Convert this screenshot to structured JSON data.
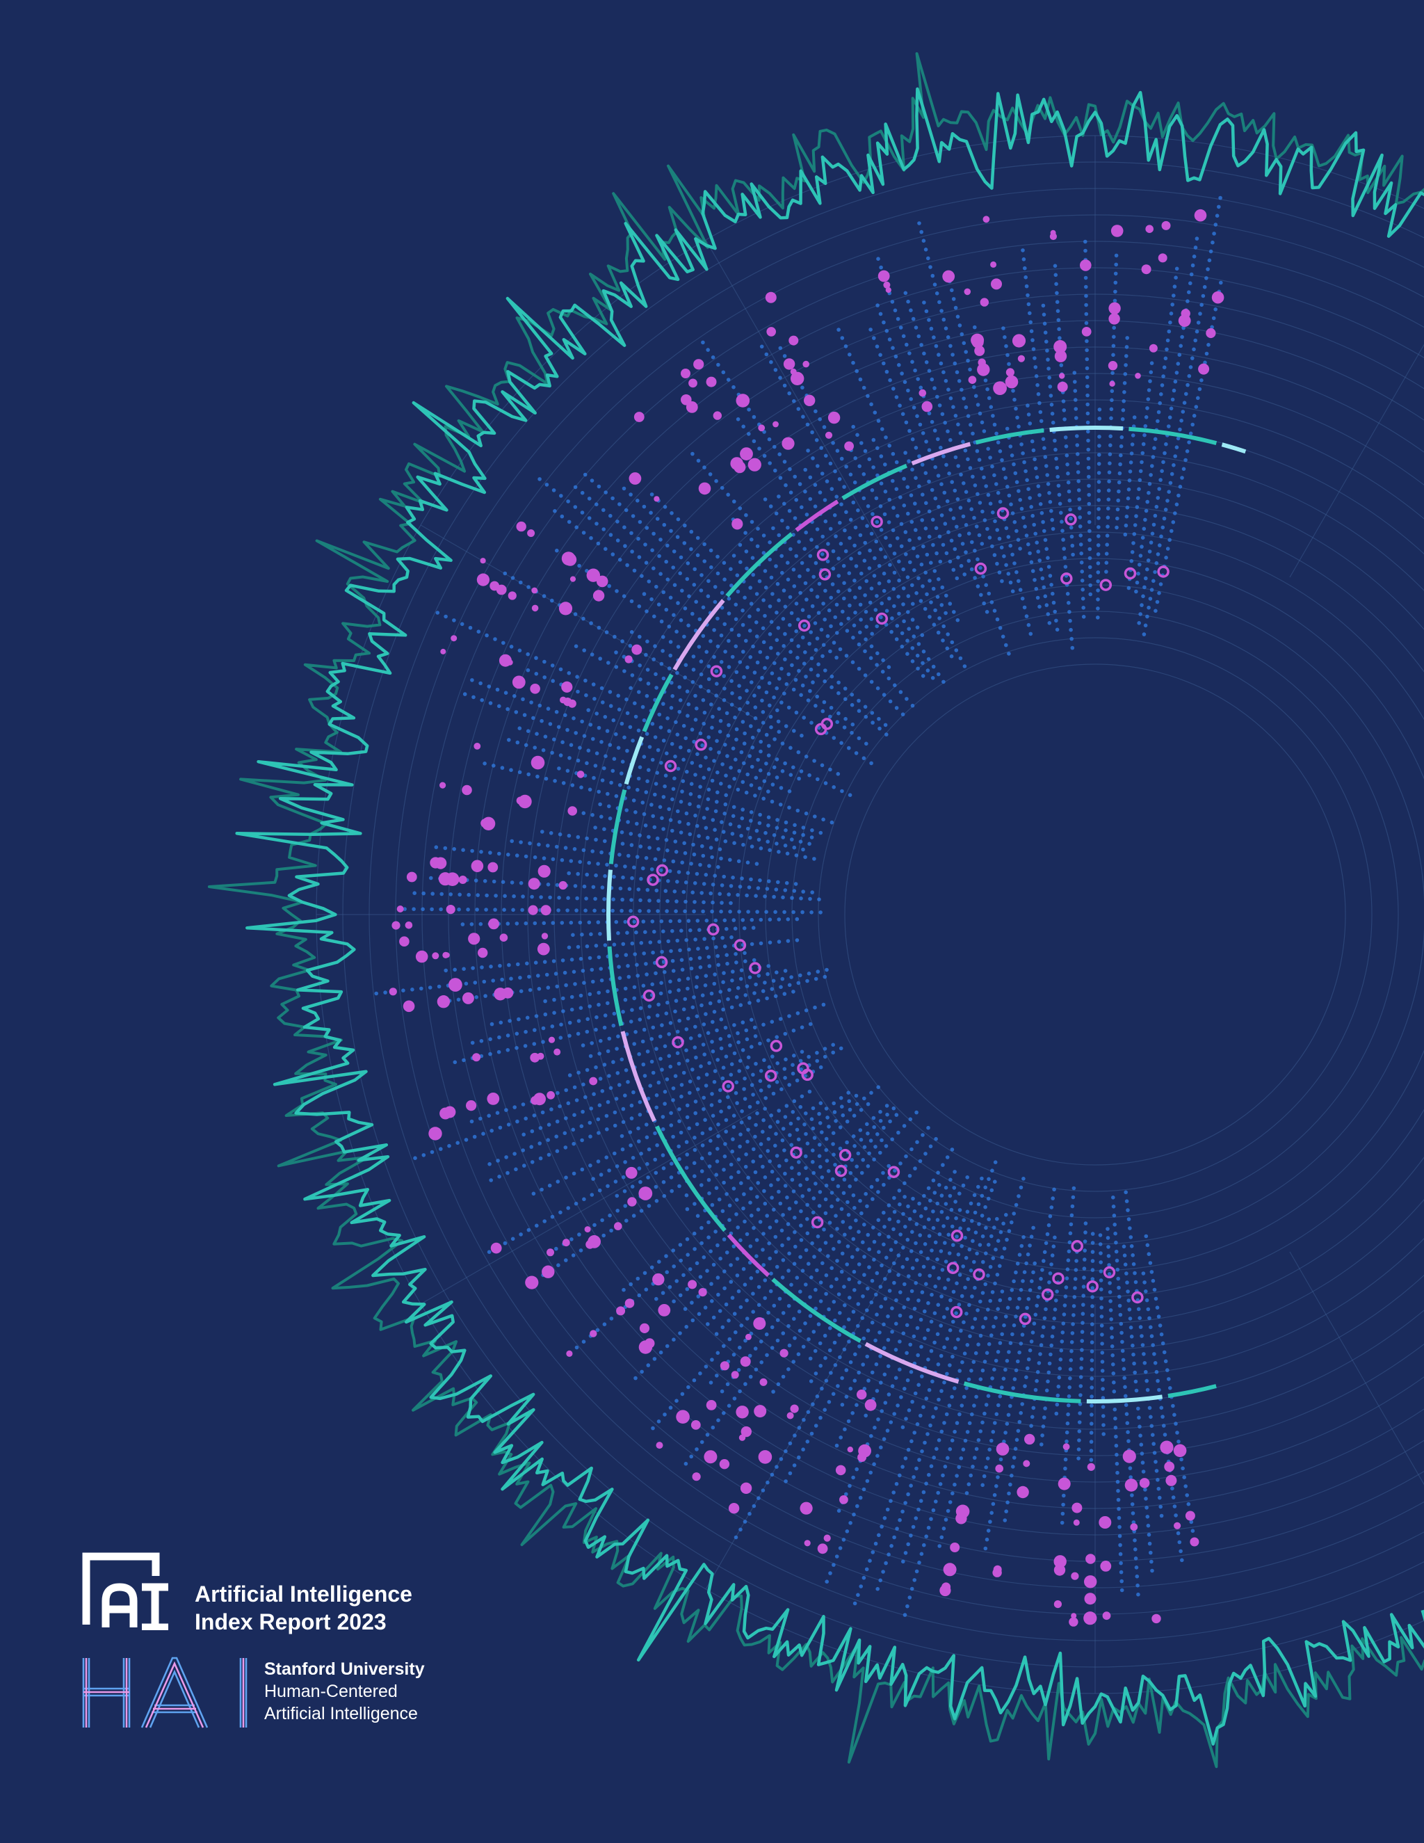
{
  "cover": {
    "logo_icon": "ai-index-logo-icon",
    "hai_icon": "hai-logo-icon",
    "report_title_line1": "Artificial Intelligence",
    "report_title_line2": "Index Report 2023",
    "org_name": "Stanford University",
    "org_line2": "Human-Centered",
    "org_line3": "Artificial Intelligence",
    "colors": {
      "background": "#1a2b5c",
      "teal": "#2ec4b6",
      "teal_dark": "#1b8a7e",
      "dot_blue": "#2f74d6",
      "magenta": "#c756d8",
      "lilac": "#d9a8ef",
      "cyan_light": "#9de9f5",
      "logo_white": "#ffffff",
      "hai_blue": "#5fa3f0",
      "hai_pink": "#e99ae8"
    }
  }
}
